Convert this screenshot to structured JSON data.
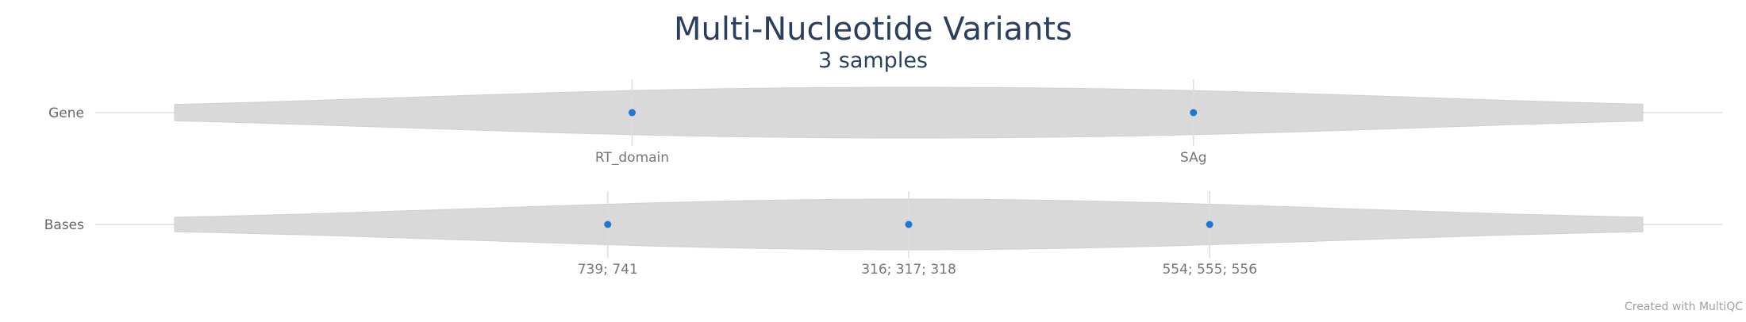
{
  "chart_data": {
    "type": "violin",
    "title": "Multi-Nucleotide Variants",
    "subtitle": "3 samples",
    "rows": [
      {
        "label": "Gene",
        "points": [
          {
            "label": "RT_domain",
            "x": 0.33
          },
          {
            "label": "SAg",
            "x": 0.675
          }
        ]
      },
      {
        "label": "Bases",
        "points": [
          {
            "label": "739; 741",
            "x": 0.315
          },
          {
            "label": "316; 317; 318",
            "x": 0.5
          },
          {
            "label": "554; 555; 556",
            "x": 0.685
          }
        ]
      }
    ],
    "violin_color": "#d9d9d9",
    "point_color": "#1f77d4",
    "grid": true
  },
  "footer": "Created with MultiQC"
}
